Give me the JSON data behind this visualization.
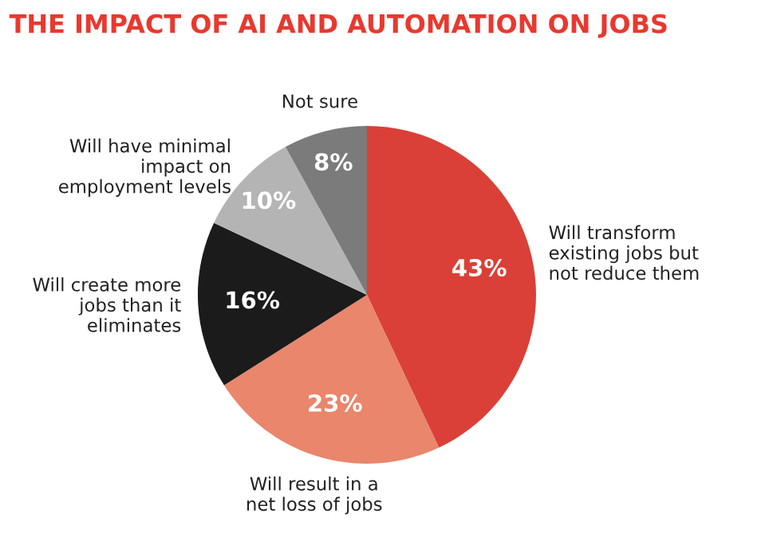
{
  "chart_data": {
    "type": "pie",
    "title": "THE IMPACT OF AI AND AUTOMATION ON JOBS",
    "categories": [
      "Will transform\nexisting jobs but\nnot reduce them",
      "Will result in a\nnet loss of jobs",
      "Will create more\njobs than it\neliminates",
      "Will have minimal\nimpact on\nemployment levels",
      "Not sure"
    ],
    "values": [
      43,
      23,
      16,
      10,
      8
    ],
    "colors": [
      "#da4037",
      "#e9866b",
      "#1b1b1b",
      "#b4b4b4",
      "#7b7b7b"
    ],
    "value_labels": [
      "43%",
      "23%",
      "16%",
      "10%",
      "8%"
    ]
  }
}
